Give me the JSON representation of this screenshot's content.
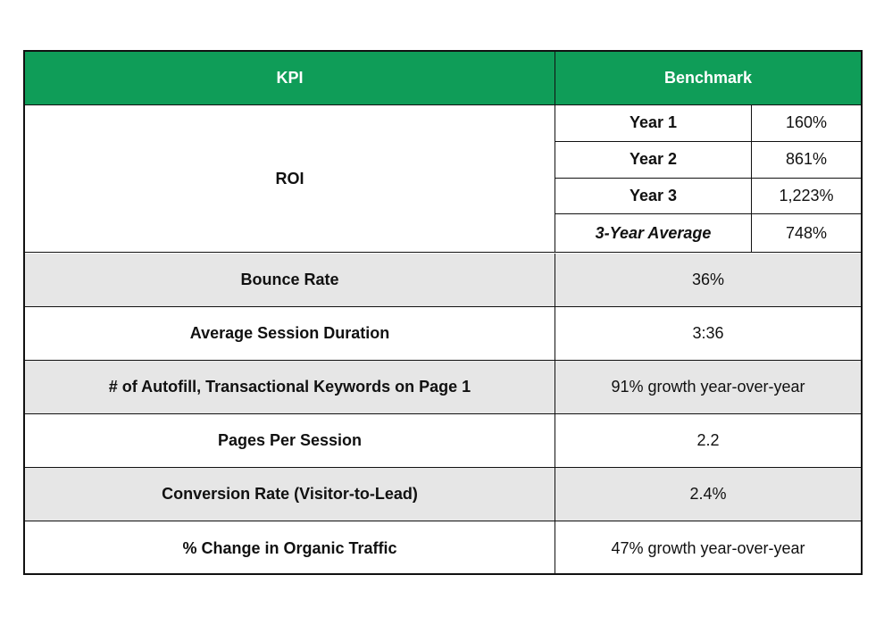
{
  "table": {
    "headers": {
      "kpi": "KPI",
      "benchmark": "Benchmark"
    },
    "roi": {
      "label": "ROI",
      "rows": [
        {
          "label": "Year 1",
          "value": "160%"
        },
        {
          "label": "Year 2",
          "value": "861%"
        },
        {
          "label": "Year 3",
          "value": "1,223%"
        },
        {
          "label": "3-Year Average",
          "value": "748%"
        }
      ]
    },
    "rows": [
      {
        "kpi": "Bounce Rate",
        "benchmark": "36%"
      },
      {
        "kpi": "Average Session Duration",
        "benchmark": "3:36"
      },
      {
        "kpi": "# of Autofill, Transactional Keywords on Page 1",
        "benchmark": "91% growth year-over-year"
      },
      {
        "kpi": "Pages Per Session",
        "benchmark": "2.2"
      },
      {
        "kpi": "Conversion Rate (Visitor-to-Lead)",
        "benchmark": "2.4%"
      },
      {
        "kpi": "% Change in Organic Traffic",
        "benchmark": "47% growth year-over-year"
      }
    ]
  },
  "colors": {
    "header_bg": "#0f9d58",
    "header_text": "#ffffff",
    "shaded_row": "#e6e6e6",
    "border": "#111111"
  }
}
